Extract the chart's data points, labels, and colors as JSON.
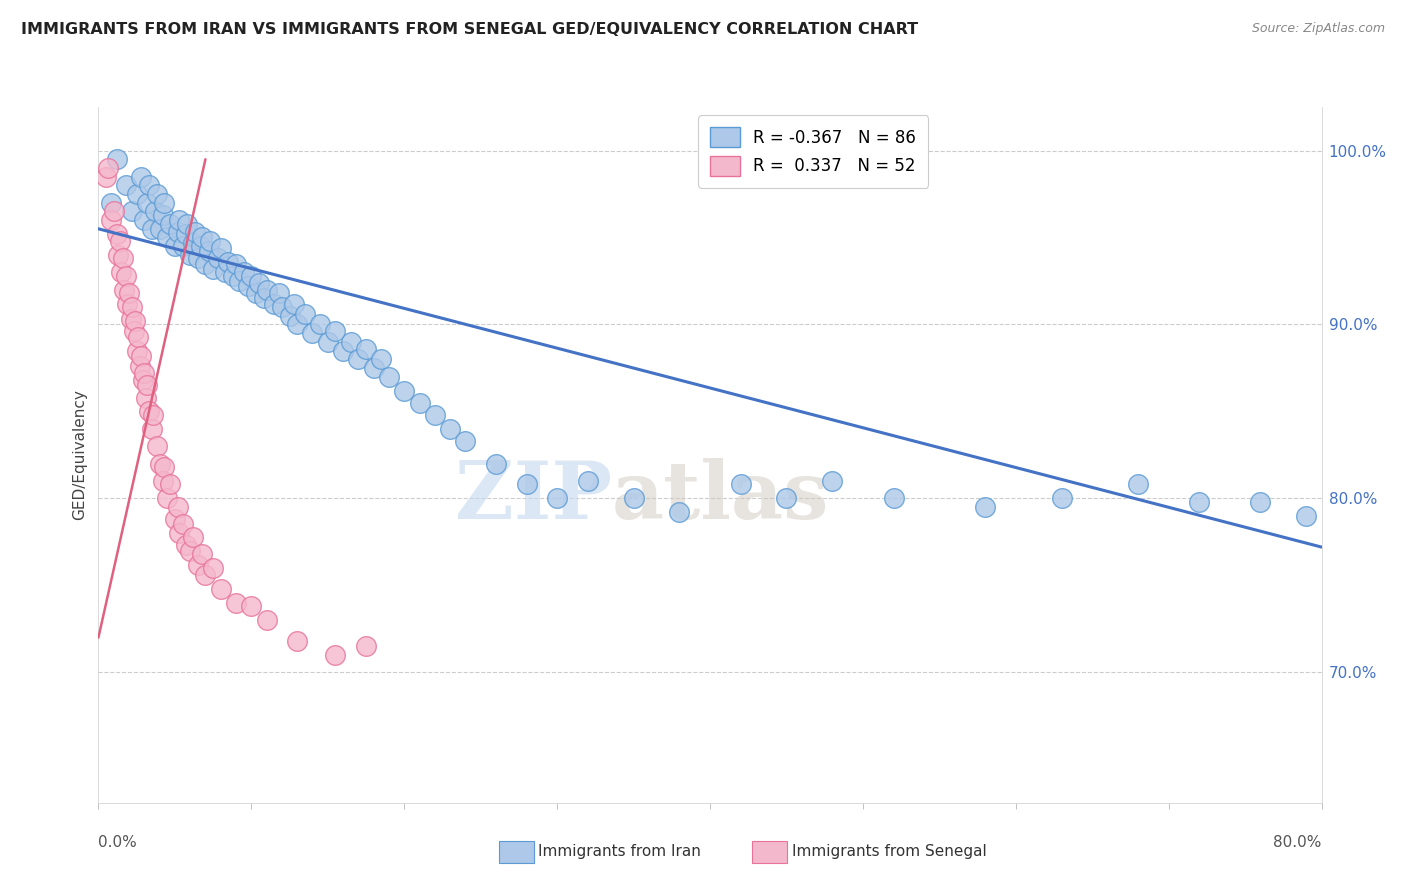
{
  "title": "IMMIGRANTS FROM IRAN VS IMMIGRANTS FROM SENEGAL GED/EQUIVALENCY CORRELATION CHART",
  "source": "Source: ZipAtlas.com",
  "ylabel": "GED/Equivalency",
  "yticks": [
    0.7,
    0.8,
    0.9,
    1.0
  ],
  "ytick_labels": [
    "70.0%",
    "80.0%",
    "90.0%",
    "100.0%"
  ],
  "xlim": [
    0.0,
    0.8
  ],
  "ylim": [
    0.625,
    1.025
  ],
  "iran_R": -0.367,
  "iran_N": 86,
  "senegal_R": 0.337,
  "senegal_N": 52,
  "iran_color": "#adc8e8",
  "iran_edge_color": "#5b9bd5",
  "senegal_color": "#f4b8cc",
  "senegal_edge_color": "#e8729a",
  "iran_line_color": "#4472c4",
  "senegal_line_color": "#e06080",
  "watermark_zip": "ZIP",
  "watermark_atlas": "atlas",
  "iran_line_x0": 0.0,
  "iran_line_y0": 0.955,
  "iran_line_x1": 0.8,
  "iran_line_y1": 0.772,
  "senegal_line_x0": 0.0,
  "senegal_line_y0": 0.72,
  "senegal_line_x1": 0.07,
  "senegal_line_y1": 0.995,
  "iran_x": [
    0.008,
    0.012,
    0.018,
    0.022,
    0.025,
    0.028,
    0.03,
    0.032,
    0.033,
    0.035,
    0.037,
    0.038,
    0.04,
    0.042,
    0.043,
    0.045,
    0.047,
    0.05,
    0.052,
    0.053,
    0.055,
    0.057,
    0.058,
    0.06,
    0.062,
    0.063,
    0.065,
    0.067,
    0.068,
    0.07,
    0.072,
    0.073,
    0.075,
    0.078,
    0.08,
    0.083,
    0.085,
    0.088,
    0.09,
    0.092,
    0.095,
    0.098,
    0.1,
    0.103,
    0.105,
    0.108,
    0.11,
    0.115,
    0.118,
    0.12,
    0.125,
    0.128,
    0.13,
    0.135,
    0.14,
    0.145,
    0.15,
    0.155,
    0.16,
    0.165,
    0.17,
    0.175,
    0.18,
    0.185,
    0.19,
    0.2,
    0.21,
    0.22,
    0.23,
    0.24,
    0.26,
    0.28,
    0.3,
    0.32,
    0.35,
    0.38,
    0.42,
    0.45,
    0.48,
    0.52,
    0.58,
    0.63,
    0.68,
    0.72,
    0.76,
    0.79
  ],
  "iran_y": [
    0.97,
    0.995,
    0.98,
    0.965,
    0.975,
    0.985,
    0.96,
    0.97,
    0.98,
    0.955,
    0.965,
    0.975,
    0.955,
    0.963,
    0.97,
    0.95,
    0.958,
    0.945,
    0.953,
    0.96,
    0.945,
    0.952,
    0.958,
    0.94,
    0.947,
    0.953,
    0.938,
    0.945,
    0.95,
    0.935,
    0.942,
    0.948,
    0.932,
    0.938,
    0.944,
    0.93,
    0.936,
    0.928,
    0.935,
    0.925,
    0.93,
    0.922,
    0.928,
    0.918,
    0.924,
    0.915,
    0.92,
    0.912,
    0.918,
    0.91,
    0.905,
    0.912,
    0.9,
    0.906,
    0.895,
    0.9,
    0.89,
    0.896,
    0.885,
    0.89,
    0.88,
    0.886,
    0.875,
    0.88,
    0.87,
    0.862,
    0.855,
    0.848,
    0.84,
    0.833,
    0.82,
    0.808,
    0.8,
    0.81,
    0.8,
    0.792,
    0.808,
    0.8,
    0.81,
    0.8,
    0.795,
    0.8,
    0.808,
    0.798,
    0.798,
    0.79
  ],
  "senegal_x": [
    0.005,
    0.006,
    0.008,
    0.01,
    0.012,
    0.013,
    0.014,
    0.015,
    0.016,
    0.017,
    0.018,
    0.019,
    0.02,
    0.021,
    0.022,
    0.023,
    0.024,
    0.025,
    0.026,
    0.027,
    0.028,
    0.029,
    0.03,
    0.031,
    0.032,
    0.033,
    0.035,
    0.036,
    0.038,
    0.04,
    0.042,
    0.043,
    0.045,
    0.047,
    0.05,
    0.052,
    0.053,
    0.055,
    0.057,
    0.06,
    0.062,
    0.065,
    0.068,
    0.07,
    0.075,
    0.08,
    0.09,
    0.1,
    0.11,
    0.13,
    0.155,
    0.175
  ],
  "senegal_y": [
    0.985,
    0.99,
    0.96,
    0.965,
    0.952,
    0.94,
    0.948,
    0.93,
    0.938,
    0.92,
    0.928,
    0.912,
    0.918,
    0.903,
    0.91,
    0.896,
    0.902,
    0.885,
    0.893,
    0.876,
    0.882,
    0.868,
    0.872,
    0.858,
    0.865,
    0.85,
    0.84,
    0.848,
    0.83,
    0.82,
    0.81,
    0.818,
    0.8,
    0.808,
    0.788,
    0.795,
    0.78,
    0.785,
    0.773,
    0.77,
    0.778,
    0.762,
    0.768,
    0.756,
    0.76,
    0.748,
    0.74,
    0.738,
    0.73,
    0.718,
    0.71,
    0.715
  ]
}
